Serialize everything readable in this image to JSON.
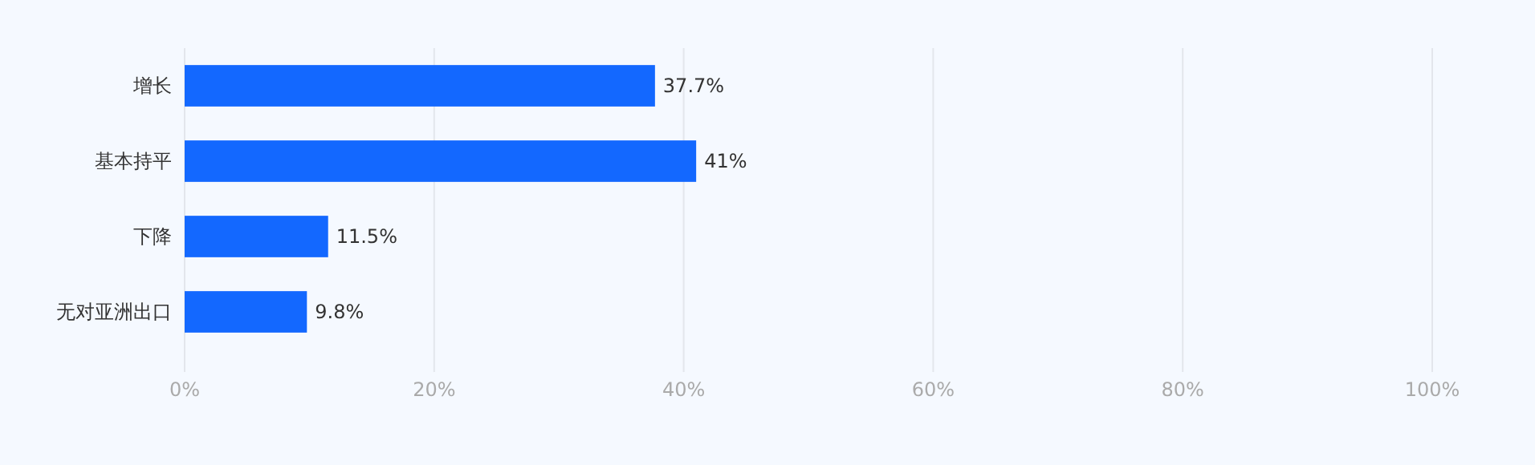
{
  "chart_data": {
    "type": "bar",
    "orientation": "horizontal",
    "categories": [
      "增长",
      "基本持平",
      "下降",
      "无对亚洲出口"
    ],
    "values": [
      37.7,
      41,
      11.5,
      9.8
    ],
    "color": "#1368ff",
    "value_labels": [
      "37.7%",
      "41%",
      "11.5%",
      "9.8%"
    ],
    "xlim": [
      0,
      100
    ],
    "xticks": [
      {
        "value": 0,
        "label": "0%"
      },
      {
        "value": 20,
        "label": "20%"
      },
      {
        "value": 40,
        "label": "40%"
      },
      {
        "value": 60,
        "label": "60%"
      },
      {
        "value": 80,
        "label": "80%"
      },
      {
        "value": 100,
        "label": "100%"
      }
    ],
    "grid": "x"
  }
}
